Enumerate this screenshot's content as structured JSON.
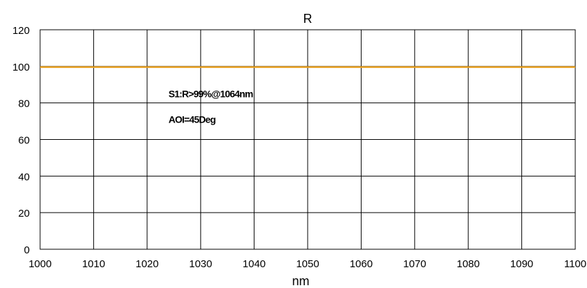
{
  "chart_data": {
    "type": "line",
    "title": "R",
    "xlabel": "nm",
    "ylabel": "",
    "xlim": [
      1000,
      1100
    ],
    "ylim": [
      0,
      120
    ],
    "x_ticks": [
      1000,
      1010,
      1020,
      1030,
      1040,
      1050,
      1060,
      1070,
      1080,
      1090,
      1100
    ],
    "y_ticks": [
      0,
      20,
      40,
      60,
      80,
      100,
      120
    ],
    "grid": true,
    "series": [
      {
        "color": "#e8a020",
        "x": [
          1000,
          1025,
          1050,
          1075,
          1100
        ],
        "y": [
          99.6,
          99.6,
          99.6,
          99.6,
          99.6
        ]
      }
    ],
    "annotations": [
      {
        "text": "S1:R>99%@1064nm",
        "x": 1024,
        "y": 83
      },
      {
        "text": "AOI=45Deg",
        "x": 1024,
        "y": 69
      }
    ]
  }
}
